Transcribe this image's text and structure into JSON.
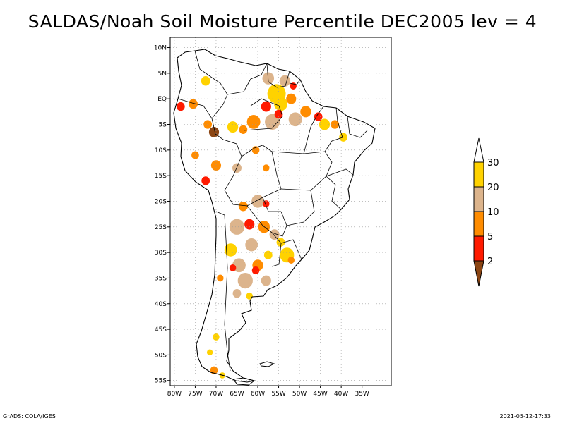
{
  "title": "SALDAS/Noah Soil Moisture Percentile DEC2005 lev = 4",
  "footer": {
    "left": "GrADS: COLA/IGES",
    "right": "2021-05-12-17:33"
  },
  "map": {
    "region": "South America",
    "projection": "lat-lon",
    "lon_range": [
      -81,
      -28
    ],
    "lat_range": [
      -56,
      12
    ],
    "x_ticks": [
      {
        "lon": -80,
        "label": "80W"
      },
      {
        "lon": -75,
        "label": "75W"
      },
      {
        "lon": -70,
        "label": "70W"
      },
      {
        "lon": -65,
        "label": "65W"
      },
      {
        "lon": -60,
        "label": "60W"
      },
      {
        "lon": -55,
        "label": "55W"
      },
      {
        "lon": -50,
        "label": "50W"
      },
      {
        "lon": -45,
        "label": "45W"
      },
      {
        "lon": -40,
        "label": "40W"
      },
      {
        "lon": -35,
        "label": "35W"
      }
    ],
    "y_ticks": [
      {
        "lat": 10,
        "label": "10N"
      },
      {
        "lat": 5,
        "label": "5N"
      },
      {
        "lat": 0,
        "label": "EQ"
      },
      {
        "lat": -5,
        "label": "5S"
      },
      {
        "lat": -10,
        "label": "10S"
      },
      {
        "lat": -15,
        "label": "15S"
      },
      {
        "lat": -20,
        "label": "20S"
      },
      {
        "lat": -25,
        "label": "25S"
      },
      {
        "lat": -30,
        "label": "30S"
      },
      {
        "lat": -35,
        "label": "35S"
      },
      {
        "lat": -40,
        "label": "40S"
      },
      {
        "lat": -45,
        "label": "45S"
      },
      {
        "lat": -50,
        "label": "50S"
      },
      {
        "lat": -55,
        "label": "55S"
      }
    ],
    "grid": true,
    "outline_color": "#000000",
    "shade_colors": {
      "below_2": "#8b4513",
      "2_5": "#ff1a00",
      "5_10": "#ff8c00",
      "10_20": "#dcb48c",
      "20_30": "#ffd200"
    },
    "patches": [
      {
        "lon": -57.5,
        "lat": 4.0,
        "r": 1.4,
        "class": "10_20"
      },
      {
        "lon": -53.5,
        "lat": 3.5,
        "r": 1.3,
        "class": "10_20"
      },
      {
        "lon": -51.5,
        "lat": 2.5,
        "r": 0.8,
        "class": "2_5"
      },
      {
        "lon": -55.5,
        "lat": 1.0,
        "r": 2.2,
        "class": "20_30"
      },
      {
        "lon": -52.0,
        "lat": 0.0,
        "r": 1.2,
        "class": "5_10"
      },
      {
        "lon": -58.0,
        "lat": -1.5,
        "r": 1.2,
        "class": "2_5"
      },
      {
        "lon": -54.5,
        "lat": -1.0,
        "r": 1.6,
        "class": "20_30"
      },
      {
        "lon": -61.0,
        "lat": -4.5,
        "r": 1.6,
        "class": "5_10"
      },
      {
        "lon": -56.5,
        "lat": -4.5,
        "r": 1.8,
        "class": "10_20"
      },
      {
        "lon": -55.0,
        "lat": -3.0,
        "r": 1.0,
        "class": "2_5"
      },
      {
        "lon": -51.0,
        "lat": -4.0,
        "r": 1.6,
        "class": "10_20"
      },
      {
        "lon": -48.5,
        "lat": -2.5,
        "r": 1.3,
        "class": "5_10"
      },
      {
        "lon": -45.5,
        "lat": -3.5,
        "r": 1.0,
        "class": "2_5"
      },
      {
        "lon": -44.0,
        "lat": -5.0,
        "r": 1.3,
        "class": "20_30"
      },
      {
        "lon": -41.5,
        "lat": -5.0,
        "r": 1.0,
        "class": "5_10"
      },
      {
        "lon": -39.5,
        "lat": -7.5,
        "r": 1.0,
        "class": "20_30"
      },
      {
        "lon": -75.5,
        "lat": -1.0,
        "r": 1.1,
        "class": "5_10"
      },
      {
        "lon": -72.5,
        "lat": 3.5,
        "r": 1.1,
        "class": "20_30"
      },
      {
        "lon": -78.5,
        "lat": -1.5,
        "r": 1.0,
        "class": "2_5"
      },
      {
        "lon": -70.5,
        "lat": -6.5,
        "r": 1.2,
        "class": "below_2"
      },
      {
        "lon": -72.0,
        "lat": -5.0,
        "r": 1.0,
        "class": "5_10"
      },
      {
        "lon": -66.0,
        "lat": -5.5,
        "r": 1.3,
        "class": "20_30"
      },
      {
        "lon": -63.5,
        "lat": -6.0,
        "r": 1.0,
        "class": "5_10"
      },
      {
        "lon": -60.5,
        "lat": -10.0,
        "r": 0.9,
        "class": "5_10"
      },
      {
        "lon": -70.0,
        "lat": -13.0,
        "r": 1.2,
        "class": "5_10"
      },
      {
        "lon": -72.5,
        "lat": -16.0,
        "r": 1.0,
        "class": "2_5"
      },
      {
        "lon": -75.0,
        "lat": -11.0,
        "r": 0.9,
        "class": "5_10"
      },
      {
        "lon": -65.0,
        "lat": -13.5,
        "r": 1.1,
        "class": "10_20"
      },
      {
        "lon": -58.0,
        "lat": -13.5,
        "r": 0.8,
        "class": "5_10"
      },
      {
        "lon": -60.0,
        "lat": -20.0,
        "r": 1.5,
        "class": "10_20"
      },
      {
        "lon": -58.0,
        "lat": -20.5,
        "r": 0.8,
        "class": "2_5"
      },
      {
        "lon": -63.5,
        "lat": -21.0,
        "r": 1.1,
        "class": "5_10"
      },
      {
        "lon": -65.0,
        "lat": -25.0,
        "r": 1.8,
        "class": "10_20"
      },
      {
        "lon": -62.0,
        "lat": -24.5,
        "r": 1.2,
        "class": "2_5"
      },
      {
        "lon": -58.5,
        "lat": -25.0,
        "r": 1.4,
        "class": "5_10"
      },
      {
        "lon": -56.0,
        "lat": -26.5,
        "r": 1.2,
        "class": "10_20"
      },
      {
        "lon": -54.5,
        "lat": -28.0,
        "r": 1.0,
        "class": "20_30"
      },
      {
        "lon": -66.5,
        "lat": -29.5,
        "r": 1.5,
        "class": "20_30"
      },
      {
        "lon": -61.5,
        "lat": -28.5,
        "r": 1.5,
        "class": "10_20"
      },
      {
        "lon": -57.5,
        "lat": -30.5,
        "r": 1.0,
        "class": "20_30"
      },
      {
        "lon": -53.0,
        "lat": -30.5,
        "r": 1.7,
        "class": "20_30"
      },
      {
        "lon": -52.0,
        "lat": -31.5,
        "r": 0.8,
        "class": "5_10"
      },
      {
        "lon": -64.5,
        "lat": -32.5,
        "r": 1.6,
        "class": "10_20"
      },
      {
        "lon": -60.0,
        "lat": -32.5,
        "r": 1.3,
        "class": "5_10"
      },
      {
        "lon": -60.5,
        "lat": -33.5,
        "r": 0.9,
        "class": "2_5"
      },
      {
        "lon": -66.0,
        "lat": -33.0,
        "r": 0.8,
        "class": "2_5"
      },
      {
        "lon": -63.0,
        "lat": -35.5,
        "r": 1.8,
        "class": "10_20"
      },
      {
        "lon": -58.0,
        "lat": -35.5,
        "r": 1.2,
        "class": "10_20"
      },
      {
        "lon": -65.0,
        "lat": -38.0,
        "r": 1.0,
        "class": "10_20"
      },
      {
        "lon": -62.0,
        "lat": -38.5,
        "r": 0.8,
        "class": "20_30"
      },
      {
        "lon": -69.0,
        "lat": -35.0,
        "r": 0.8,
        "class": "5_10"
      },
      {
        "lon": -70.0,
        "lat": -46.5,
        "r": 0.8,
        "class": "20_30"
      },
      {
        "lon": -71.5,
        "lat": -49.5,
        "r": 0.7,
        "class": "20_30"
      },
      {
        "lon": -70.5,
        "lat": -53.0,
        "r": 0.9,
        "class": "5_10"
      },
      {
        "lon": -68.5,
        "lat": -54.0,
        "r": 0.7,
        "class": "20_30"
      }
    ]
  },
  "colorbar": {
    "colors": [
      "#8b4513",
      "#ff1a00",
      "#ff8c00",
      "#dcb48c",
      "#ffd200",
      "#ffffff"
    ],
    "labels": [
      "2",
      "5",
      "10",
      "20",
      "30"
    ]
  }
}
